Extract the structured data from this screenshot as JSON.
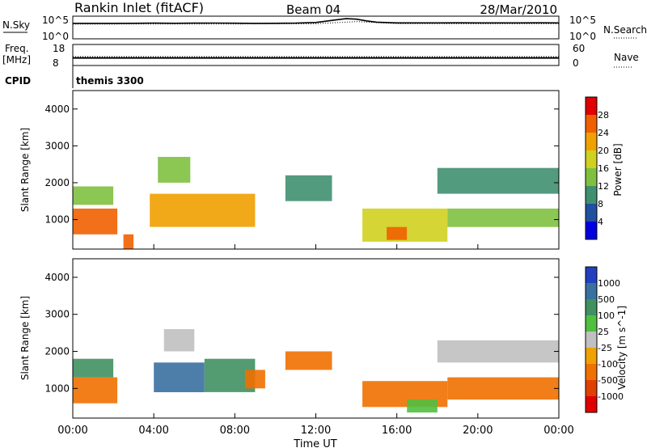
{
  "header": {
    "station": "Rankin Inlet (fitACF)",
    "beam": "Beam 04",
    "date": "28/Mar/2010"
  },
  "chart_data": [
    {
      "type": "line",
      "panel": "noise",
      "left_label": "N.Sky",
      "right_label": "N.Search",
      "left_ticks": [
        "10^5",
        "10^0"
      ],
      "right_ticks": [
        "10^5",
        "10^0"
      ],
      "scale": "log",
      "ylim": [
        1,
        100000
      ],
      "series": [
        {
          "name": "N.Sky",
          "style": "solid",
          "x_hours": [
            0,
            1,
            2,
            3,
            4,
            5,
            6,
            7,
            8,
            9,
            10,
            11,
            12,
            13,
            13.5,
            14,
            14.5,
            15,
            16,
            17,
            18,
            19,
            20,
            21,
            22,
            23,
            24
          ],
          "values": [
            3000,
            3000,
            3000,
            3200,
            3500,
            3200,
            3400,
            3600,
            3300,
            3000,
            3100,
            3500,
            5000,
            20000,
            40000,
            30000,
            12000,
            6000,
            4000,
            4000,
            4000,
            4200,
            4000,
            4000,
            4000,
            4200,
            4000
          ]
        },
        {
          "name": "N.Search",
          "style": "dotted",
          "x_hours": [
            0,
            4,
            8,
            12,
            14,
            16,
            20,
            24
          ],
          "values": [
            2000,
            2200,
            2200,
            2500,
            8000,
            2600,
            2400,
            2400
          ]
        }
      ]
    },
    {
      "type": "line",
      "panel": "frequency",
      "left_label": "Freq.",
      "left_unit": "[MHz]",
      "right_label": "Nave",
      "left_ticks": [
        "18",
        "8"
      ],
      "right_ticks": [
        "60",
        "0"
      ],
      "ylim": [
        8,
        18
      ],
      "series": [
        {
          "name": "Freq.",
          "style": "solid",
          "x_hours": [
            0,
            24
          ],
          "values": [
            11.5,
            11.5
          ]
        },
        {
          "name": "Nave",
          "style": "dotted",
          "x_hours": [
            0,
            24
          ],
          "values": [
            25,
            25
          ]
        }
      ]
    },
    {
      "type": "text",
      "panel": "cpid",
      "label": "CPID",
      "value": "themis 3300"
    },
    {
      "type": "heatmap",
      "panel": "power",
      "ylabel": "Slant Range [km]",
      "yticks": [
        1000,
        2000,
        3000,
        4000
      ],
      "ylim": [
        200,
        4500
      ],
      "colorbar": {
        "label": "Power [dB]",
        "ticks": [
          "28",
          "24",
          "20",
          "16",
          "12",
          "8",
          "4"
        ],
        "colors": [
          "#e00000",
          "#f06000",
          "#f0a000",
          "#d0d020",
          "#80c040",
          "#409070",
          "#2050a0",
          "#0000e0"
        ]
      },
      "regions": [
        {
          "t": [
            0.0,
            2.2
          ],
          "r": [
            600,
            1300
          ],
          "value": 28
        },
        {
          "t": [
            0.0,
            2.0
          ],
          "r": [
            1400,
            1900
          ],
          "value": 14
        },
        {
          "t": [
            3.8,
            9.0
          ],
          "r": [
            800,
            1700
          ],
          "value": 24
        },
        {
          "t": [
            4.2,
            5.8
          ],
          "r": [
            2000,
            2700
          ],
          "value": 14
        },
        {
          "t": [
            10.5,
            12.8
          ],
          "r": [
            1500,
            2200
          ],
          "value": 10
        },
        {
          "t": [
            14.3,
            18.5
          ],
          "r": [
            400,
            1300
          ],
          "value": 18
        },
        {
          "t": [
            15.5,
            16.5
          ],
          "r": [
            450,
            800
          ],
          "value": 26
        },
        {
          "t": [
            18.5,
            24.0
          ],
          "r": [
            800,
            1300
          ],
          "value": 14
        },
        {
          "t": [
            18.0,
            24.0
          ],
          "r": [
            1700,
            2400
          ],
          "value": 10
        },
        {
          "t": [
            2.5,
            3.0
          ],
          "r": [
            200,
            600
          ],
          "value": 28
        }
      ]
    },
    {
      "type": "heatmap",
      "panel": "velocity",
      "ylabel": "Slant Range [km]",
      "yticks": [
        1000,
        2000,
        3000,
        4000
      ],
      "ylim": [
        200,
        4500
      ],
      "colorbar": {
        "label": "Velocity  [m s^-1]",
        "ticks": [
          "1000",
          "500",
          "100",
          "25",
          "-25",
          "-100",
          "-500",
          "-1000"
        ],
        "colors": [
          "#2040c0",
          "#3870a0",
          "#409060",
          "#50c040",
          "#c0c0c0",
          "#f0a000",
          "#f07000",
          "#e04000",
          "#e00000"
        ]
      },
      "regions": [
        {
          "t": [
            0.0,
            2.2
          ],
          "r": [
            600,
            1300
          ],
          "value": -300
        },
        {
          "t": [
            0.0,
            2.0
          ],
          "r": [
            1300,
            1800
          ],
          "value": 300
        },
        {
          "t": [
            4.0,
            6.5
          ],
          "r": [
            900,
            1700
          ],
          "value": 800
        },
        {
          "t": [
            4.5,
            6.0
          ],
          "r": [
            2000,
            2600
          ],
          "value": 0
        },
        {
          "t": [
            6.5,
            9.0
          ],
          "r": [
            900,
            1800
          ],
          "value": 200
        },
        {
          "t": [
            8.5,
            9.5
          ],
          "r": [
            1000,
            1500
          ],
          "value": -300
        },
        {
          "t": [
            10.5,
            12.8
          ],
          "r": [
            1500,
            2000
          ],
          "value": -300
        },
        {
          "t": [
            14.3,
            18.5
          ],
          "r": [
            500,
            1200
          ],
          "value": -300
        },
        {
          "t": [
            16.5,
            18.0
          ],
          "r": [
            350,
            700
          ],
          "value": 80
        },
        {
          "t": [
            18.5,
            24.0
          ],
          "r": [
            700,
            1300
          ],
          "value": -250
        },
        {
          "t": [
            18.0,
            24.0
          ],
          "r": [
            1700,
            2300
          ],
          "value": 0
        }
      ]
    }
  ],
  "xaxis": {
    "label": "Time UT",
    "ticks": [
      "00:00",
      "04:00",
      "08:00",
      "12:00",
      "16:00",
      "20:00",
      "00:00"
    ],
    "range_hours": [
      0,
      24
    ]
  }
}
